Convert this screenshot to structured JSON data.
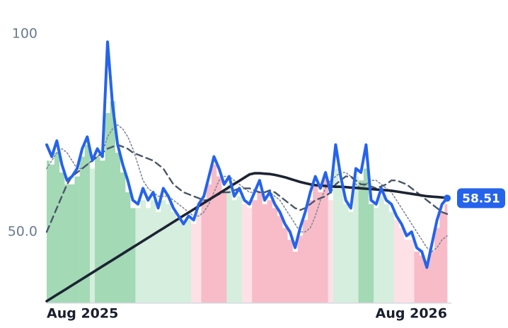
{
  "chart_data": {
    "type": "line",
    "categories": [
      "Aug 2025",
      null,
      null,
      null,
      null,
      null,
      null,
      null,
      null,
      null,
      null,
      null,
      null,
      null,
      null,
      null,
      null,
      null,
      null,
      null,
      null,
      null,
      null,
      null,
      null,
      null,
      null,
      null,
      null,
      null,
      null,
      null,
      null,
      null,
      null,
      null,
      null,
      null,
      null,
      null,
      null,
      null,
      null,
      null,
      null,
      null,
      null,
      null,
      null,
      null,
      null,
      null,
      null,
      null,
      null,
      null,
      null,
      null,
      null,
      null,
      null,
      null,
      null,
      null,
      null,
      null,
      null,
      null,
      null,
      null,
      null,
      null,
      null,
      null,
      null,
      null,
      null,
      null,
      null,
      "Aug 2026"
    ],
    "ylim": [
      32,
      100
    ],
    "yticks": [
      {
        "value": 50,
        "label": "50.0"
      },
      100
    ],
    "series": [
      {
        "type": "bar",
        "values": [
          68,
          67,
          70,
          65,
          62,
          62,
          64,
          69,
          72,
          66,
          69,
          68,
          80,
          83,
          70,
          65,
          60,
          56,
          56,
          58,
          56,
          58,
          55,
          58,
          57,
          55,
          53,
          52,
          53,
          52,
          55,
          58,
          62,
          67,
          64,
          60,
          62,
          58,
          59,
          57,
          56,
          58,
          60,
          57,
          58,
          56,
          54,
          51,
          48,
          45,
          49,
          53,
          58,
          62,
          60,
          64,
          58,
          66,
          62,
          57,
          55,
          64,
          63,
          66,
          57,
          56,
          59,
          57,
          55,
          53,
          51,
          48,
          48,
          45,
          44,
          42,
          45,
          51,
          55,
          57
        ],
        "colors": [
          "#a3d9b5",
          "#a3d9b5",
          "#a3d9b5",
          "#a3d9b5",
          "#a3d9b5",
          "#a3d9b5",
          "#a3d9b5",
          "#a3d9b5",
          "#a3d9b5",
          "#d5eedd",
          "#a3d9b5",
          "#a3d9b5",
          "#a3d9b5",
          "#a3d9b5",
          "#a3d9b5",
          "#a3d9b5",
          "#a3d9b5",
          "#a3d9b5",
          "#d5eedd",
          "#d5eedd",
          "#d5eedd",
          "#d5eedd",
          "#d5eedd",
          "#d5eedd",
          "#d5eedd",
          "#d5eedd",
          "#d5eedd",
          "#d5eedd",
          "#d5eedd",
          "#fde1e7",
          "#fde1e7",
          "#f8bcc8",
          "#f8bcc8",
          "#f8bcc8",
          "#f8bcc8",
          "#f8bcc8",
          "#d5eedd",
          "#d5eedd",
          "#d5eedd",
          "#fde1e7",
          "#fde1e7",
          "#f8bcc8",
          "#f8bcc8",
          "#f8bcc8",
          "#f8bcc8",
          "#f8bcc8",
          "#f8bcc8",
          "#f8bcc8",
          "#f8bcc8",
          "#f8bcc8",
          "#f8bcc8",
          "#f8bcc8",
          "#f8bcc8",
          "#f8bcc8",
          "#f8bcc8",
          "#f8bcc8",
          "#fde1e7",
          "#d5eedd",
          "#d5eedd",
          "#d5eedd",
          "#d5eedd",
          "#d5eedd",
          "#a3d9b5",
          "#a3d9b5",
          "#a3d9b5",
          "#d5eedd",
          "#d5eedd",
          "#d5eedd",
          "#d5eedd",
          "#fde1e7",
          "#fde1e7",
          "#fde1e7",
          "#fde1e7",
          "#f8bcc8",
          "#f8bcc8",
          "#f8bcc8",
          "#f8bcc8",
          "#f8bcc8",
          "#f8bcc8",
          "#f8bcc8"
        ]
      },
      {
        "type": "line",
        "style": "dotted",
        "color": "#7d8799",
        "values": [
          66,
          68,
          70,
          71,
          70,
          68,
          66,
          66,
          67,
          68,
          69,
          70,
          74,
          76,
          77,
          76,
          74,
          71,
          67,
          63,
          61,
          60,
          59,
          59,
          59,
          58,
          57,
          56,
          55,
          54,
          54,
          55,
          57,
          60,
          63,
          64,
          64,
          63,
          62,
          61,
          60,
          60,
          60,
          60,
          60,
          59,
          58,
          56,
          54,
          52,
          50,
          50,
          51,
          54,
          58,
          61,
          63,
          64,
          65,
          65,
          64,
          62,
          61,
          62,
          63,
          63,
          62,
          61,
          60,
          58,
          56,
          54,
          52,
          50,
          48,
          46,
          45,
          46,
          48,
          49
        ]
      },
      {
        "type": "line",
        "style": "dashed",
        "color": "#4a5568",
        "values": [
          50,
          53,
          56,
          59,
          62,
          64,
          65,
          66,
          67,
          68,
          69,
          70,
          71,
          71.5,
          72,
          71.5,
          71,
          70,
          69.5,
          69,
          68.5,
          68,
          67,
          66,
          64,
          62,
          61,
          60,
          59.5,
          59,
          58.5,
          58,
          58,
          59,
          59.5,
          60,
          60,
          60.5,
          61,
          61,
          61,
          60.5,
          60,
          60,
          60.5,
          60,
          59,
          58,
          57,
          56,
          55.5,
          56,
          57,
          58,
          58.5,
          59,
          60,
          62,
          63,
          64,
          64,
          63,
          62,
          62,
          61.5,
          61,
          61.5,
          62,
          63,
          63,
          62.5,
          62,
          61,
          60,
          59,
          58,
          57,
          56,
          55,
          54.5
        ]
      },
      {
        "type": "line",
        "style": "thick",
        "color": "#1c2333",
        "values": [
          32.5,
          33.3,
          34.1,
          34.9,
          35.7,
          36.5,
          37.3,
          38.1,
          38.9,
          39.7,
          40.5,
          41.3,
          42.1,
          42.9,
          43.7,
          44.5,
          45.3,
          46.1,
          46.9,
          47.7,
          48.5,
          49.3,
          50.1,
          50.9,
          51.7,
          52.5,
          53.3,
          54.1,
          54.9,
          55.7,
          56.5,
          57.3,
          58.1,
          58.9,
          59.7,
          60.5,
          61.3,
          62.1,
          62.9,
          63.7,
          64.5,
          64.8,
          64.8,
          64.7,
          64.6,
          64.4,
          64.1,
          63.8,
          63.4,
          63,
          62.6,
          62.3,
          62,
          61.8,
          61.7,
          61.6,
          61.5,
          61.4,
          61.4,
          61.3,
          61.2,
          61.1,
          61,
          60.9,
          60.8,
          60.7,
          60.6,
          60.5,
          60.4,
          60.2,
          60,
          59.8,
          59.6,
          59.4,
          59.2,
          59,
          58.9,
          58.8,
          58.7,
          58.6
        ]
      },
      {
        "type": "line",
        "style": "main",
        "color": "#2563eb",
        "last_label": true,
        "values": [
          72,
          69,
          73,
          67,
          63,
          64,
          66,
          71,
          74,
          68,
          71,
          69,
          98,
          82,
          72,
          67,
          63,
          58,
          57,
          61,
          58,
          60,
          56,
          61,
          59,
          56,
          54,
          52,
          54,
          53,
          57,
          59,
          64,
          69,
          66,
          62,
          64,
          59,
          61,
          58,
          57,
          60,
          63,
          58,
          60,
          57,
          55,
          52,
          50,
          46,
          51,
          55,
          60,
          64,
          61,
          65,
          60,
          72,
          64,
          58,
          56,
          66,
          65,
          72,
          58,
          57,
          61,
          58,
          57,
          54,
          52,
          49,
          50,
          46,
          45,
          41,
          47,
          53,
          57,
          58.51
        ]
      }
    ]
  }
}
